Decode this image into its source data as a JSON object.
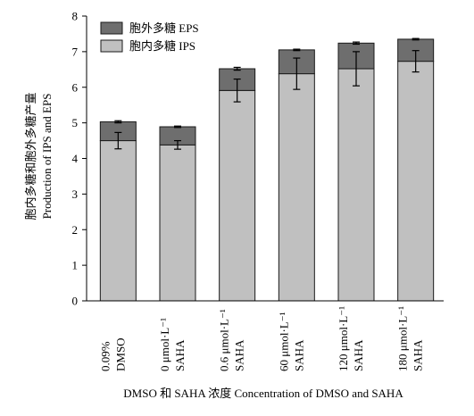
{
  "chart_data": {
    "type": "bar",
    "stacked": true,
    "categories": [
      [
        "0.09%",
        "DMSO"
      ],
      [
        "0 μmol·L⁻¹",
        "SAHA"
      ],
      [
        "0.6 μmol·L⁻¹",
        "SAHA"
      ],
      [
        "60 μmol·L⁻¹",
        "SAHA"
      ],
      [
        "120 μmol·L⁻¹",
        "SAHA"
      ],
      [
        "180 μmol·L⁻¹",
        "SAHA"
      ]
    ],
    "series": [
      {
        "name": "胞内多糖 IPS",
        "color": "#c0c0c0",
        "values": [
          4.5,
          4.38,
          5.91,
          6.38,
          6.52,
          6.73
        ],
        "error": [
          0.23,
          0.12,
          0.32,
          0.44,
          0.48,
          0.3
        ]
      },
      {
        "name": "胞外多糖 EPS",
        "color": "#6e6e6e",
        "values": [
          0.53,
          0.51,
          0.61,
          0.67,
          0.72,
          0.62
        ],
        "error": [
          0.03,
          0.02,
          0.04,
          0.02,
          0.03,
          0.02
        ]
      }
    ],
    "xlabel": "DMSO 和 SAHA 浓度 Concentration of DMSO and SAHA",
    "ylabel": [
      "胞内多糖和胞外多糖产量",
      "Production of IPS and EPS"
    ],
    "ylim": [
      0,
      8
    ],
    "yticks": [
      0,
      1,
      2,
      3,
      4,
      5,
      6,
      7,
      8
    ],
    "legend": "top-left",
    "grid": false
  }
}
